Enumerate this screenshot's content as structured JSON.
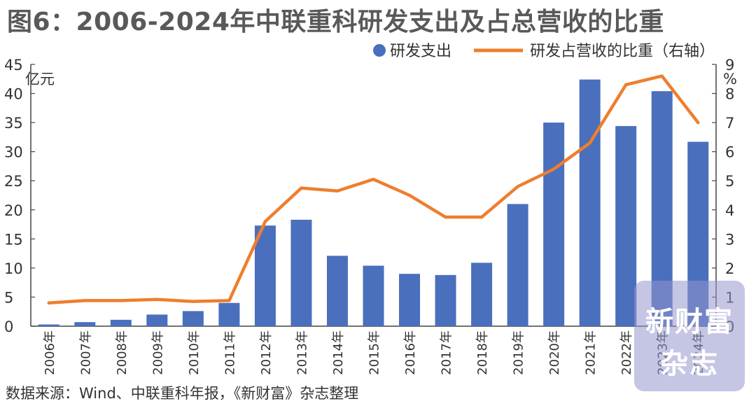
{
  "title": "图6：2006-2024年中联重科研发支出及占总营收的比重",
  "source": "数据来源：Wind、中联重科年报，《新财富》杂志整理",
  "watermark": {
    "line1": "新财富",
    "line2": "杂志"
  },
  "colors": {
    "bar": "#4a6fbd",
    "line": "#ee7e2d",
    "axis": "#444444",
    "text": "#333333"
  },
  "chart_data": {
    "type": "bar+line",
    "categories": [
      "2006年",
      "2007年",
      "2008年",
      "2009年",
      "2010年",
      "2011年",
      "2012年",
      "2013年",
      "2014年",
      "2015年",
      "2016年",
      "2017年",
      "2018年",
      "2019年",
      "2020年",
      "2021年",
      "2022年",
      "2023年",
      "2024年"
    ],
    "series": [
      {
        "name": "研发支出",
        "type": "bar",
        "axis": "left",
        "values": [
          0.3,
          0.7,
          1.1,
          2.0,
          2.6,
          4.0,
          17.3,
          18.3,
          12.1,
          10.4,
          9.0,
          8.8,
          10.9,
          21.0,
          35.0,
          42.4,
          34.4,
          40.4,
          31.7
        ]
      },
      {
        "name": "研发占营收的比重（右轴）",
        "type": "line",
        "axis": "right",
        "values": [
          0.8,
          0.88,
          0.88,
          0.92,
          0.85,
          0.88,
          3.6,
          4.75,
          4.65,
          5.05,
          4.5,
          3.75,
          3.75,
          4.8,
          5.4,
          6.3,
          8.3,
          8.6,
          7.0
        ]
      }
    ],
    "left_axis": {
      "unit": "亿元",
      "min": 0,
      "max": 45,
      "ticks": [
        0,
        5,
        10,
        15,
        20,
        25,
        30,
        35,
        40,
        45
      ]
    },
    "right_axis": {
      "unit": "%",
      "min": 0,
      "max": 9,
      "ticks": [
        0,
        1,
        2,
        3,
        4,
        5,
        6,
        7,
        8,
        9
      ]
    },
    "legend": "top-right",
    "grid": false
  }
}
